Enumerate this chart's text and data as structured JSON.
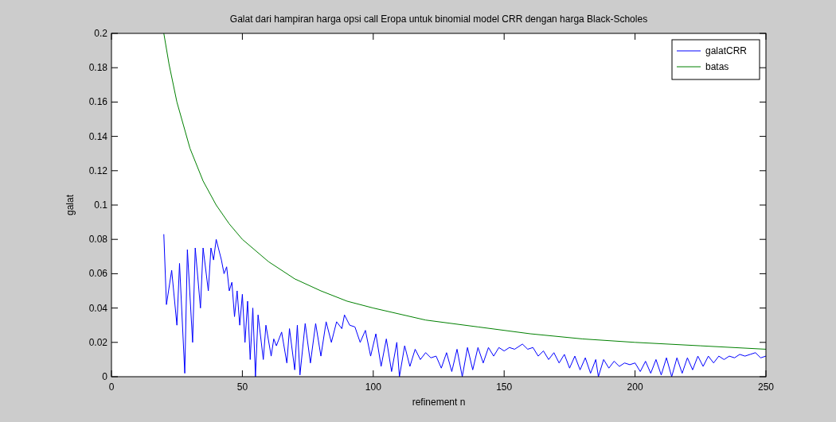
{
  "chart_data": {
    "type": "line",
    "title": "Galat dari hampiran harga opsi call Eropa untuk binomial model CRR dengan harga Black-Scholes",
    "xlabel": "refinement n",
    "ylabel": "galat",
    "xlim": [
      0,
      250
    ],
    "xticks": [
      0,
      50,
      100,
      150,
      200,
      250
    ],
    "ylim": [
      0,
      0.2
    ],
    "yticks": [
      0,
      0.02,
      0.04,
      0.06,
      0.08,
      0.1,
      0.12,
      0.14,
      0.16,
      0.18,
      0.2
    ],
    "grid": false,
    "legend": "top right",
    "series": [
      {
        "name": "galatCRR",
        "color": "#0000ff",
        "x": [
          20,
          21,
          23,
          25,
          26,
          28,
          29,
          31,
          32,
          34,
          35,
          37,
          38,
          39,
          40,
          42,
          43,
          44,
          45,
          46,
          47,
          48,
          49,
          50,
          51,
          52,
          53,
          54,
          55,
          56,
          58,
          59,
          61,
          62,
          63,
          65,
          67,
          68,
          70,
          71,
          72,
          74,
          76,
          78,
          80,
          82,
          84,
          86,
          88,
          89,
          91,
          93,
          95,
          97,
          99,
          101,
          103,
          105,
          107,
          109,
          110,
          112,
          114,
          116,
          118,
          120,
          122,
          124,
          126,
          128,
          130,
          132,
          134,
          136,
          138,
          140,
          142,
          144,
          146,
          148,
          150,
          152,
          154,
          157,
          159,
          161,
          163,
          165,
          167,
          169,
          171,
          173,
          175,
          177,
          179,
          181,
          183,
          185,
          186,
          188,
          190,
          192,
          194,
          196,
          198,
          200,
          202,
          204,
          206,
          208,
          210,
          212,
          214,
          216,
          218,
          220,
          222,
          224,
          226,
          228,
          230,
          232,
          234,
          236,
          238,
          240,
          242,
          244,
          246,
          248,
          250
        ],
        "values": [
          0.083,
          0.042,
          0.062,
          0.03,
          0.066,
          0.002,
          0.074,
          0.02,
          0.075,
          0.04,
          0.075,
          0.05,
          0.075,
          0.068,
          0.08,
          0.068,
          0.06,
          0.064,
          0.05,
          0.055,
          0.035,
          0.05,
          0.03,
          0.048,
          0.02,
          0.044,
          0.01,
          0.04,
          0.0,
          0.036,
          0.01,
          0.03,
          0.012,
          0.022,
          0.018,
          0.026,
          0.008,
          0.028,
          0.004,
          0.03,
          0.001,
          0.031,
          0.008,
          0.031,
          0.012,
          0.032,
          0.02,
          0.032,
          0.028,
          0.036,
          0.03,
          0.029,
          0.02,
          0.027,
          0.012,
          0.025,
          0.006,
          0.022,
          0.003,
          0.02,
          0.0,
          0.018,
          0.006,
          0.016,
          0.01,
          0.014,
          0.011,
          0.012,
          0.005,
          0.014,
          0.003,
          0.016,
          0.0,
          0.017,
          0.004,
          0.017,
          0.008,
          0.017,
          0.012,
          0.017,
          0.015,
          0.017,
          0.016,
          0.019,
          0.016,
          0.017,
          0.012,
          0.015,
          0.01,
          0.014,
          0.008,
          0.013,
          0.005,
          0.012,
          0.004,
          0.011,
          0.002,
          0.01,
          0.0,
          0.01,
          0.005,
          0.009,
          0.006,
          0.008,
          0.007,
          0.008,
          0.003,
          0.009,
          0.002,
          0.01,
          0.001,
          0.011,
          0.0,
          0.011,
          0.002,
          0.011,
          0.004,
          0.012,
          0.006,
          0.012,
          0.008,
          0.012,
          0.01,
          0.012,
          0.011,
          0.013,
          0.012,
          0.013,
          0.014,
          0.011,
          0.012
        ]
      },
      {
        "name": "batas",
        "color": "#008000",
        "x": [
          20,
          22,
          25,
          30,
          35,
          40,
          45,
          50,
          60,
          70,
          80,
          90,
          100,
          120,
          140,
          160,
          180,
          200,
          225,
          250
        ],
        "values": [
          0.2,
          0.182,
          0.16,
          0.133,
          0.114,
          0.1,
          0.089,
          0.08,
          0.067,
          0.057,
          0.05,
          0.044,
          0.04,
          0.033,
          0.029,
          0.025,
          0.022,
          0.02,
          0.018,
          0.016
        ]
      }
    ]
  }
}
